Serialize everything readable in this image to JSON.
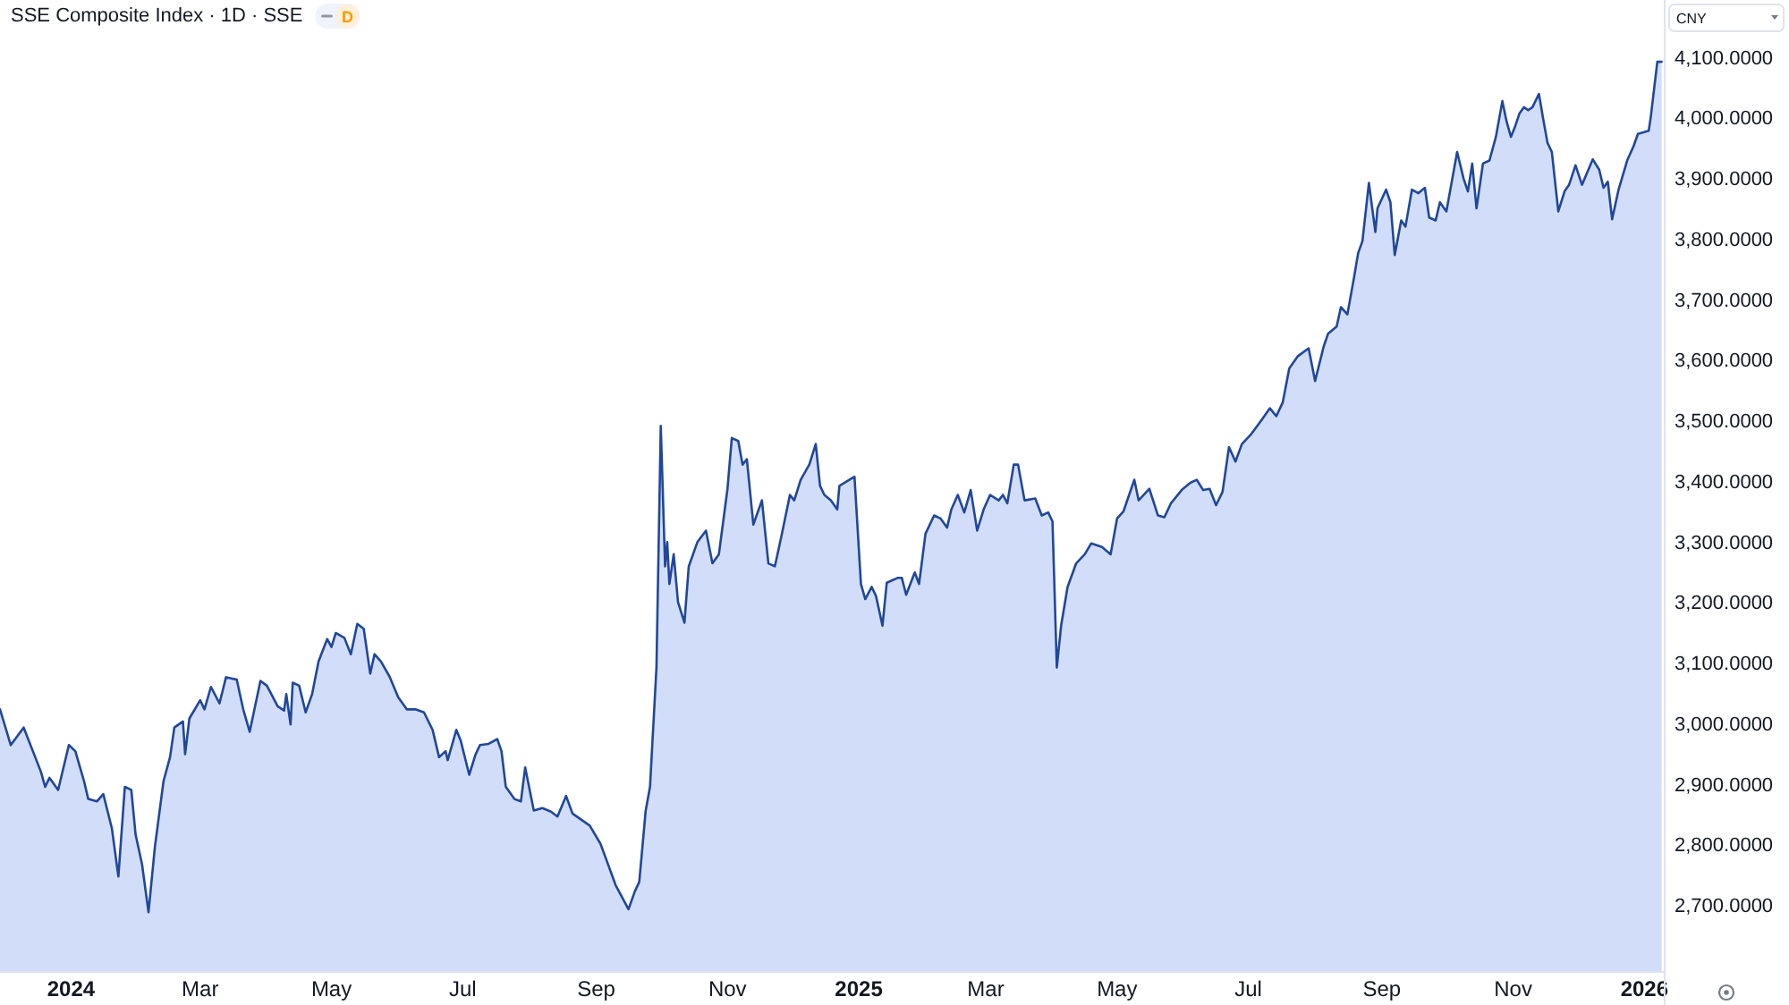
{
  "chart_data": {
    "type": "area",
    "title": "SSE Composite Index · 1D · SSE",
    "ylabel": "CNY",
    "annotations": [
      "D"
    ],
    "color": "#21479b",
    "xlim": [
      "2023-11-29",
      "2026-01-10"
    ],
    "ylim": [
      2594,
      4197
    ],
    "xticks": [
      {
        "value": "2024-01-01",
        "label": "2024"
      },
      {
        "value": "2024-03-01",
        "label": "Mar"
      },
      {
        "value": "2024-05-01",
        "label": "May"
      },
      {
        "value": "2024-07-01",
        "label": "Jul"
      },
      {
        "value": "2024-09-01",
        "label": "Sep"
      },
      {
        "value": "2024-11-01",
        "label": "Nov"
      },
      {
        "value": "2025-01-01",
        "label": "2025"
      },
      {
        "value": "2025-03-01",
        "label": "Mar"
      },
      {
        "value": "2025-05-01",
        "label": "May"
      },
      {
        "value": "2025-07-01",
        "label": "Jul"
      },
      {
        "value": "2025-09-01",
        "label": "Sep"
      },
      {
        "value": "2025-11-01",
        "label": "Nov"
      },
      {
        "value": "2026-01-01",
        "label": "2026"
      }
    ],
    "yticks": [
      {
        "value": 2700,
        "label": "2,700.0000"
      },
      {
        "value": 2800,
        "label": "2,800.0000"
      },
      {
        "value": 2900,
        "label": "2,900.0000"
      },
      {
        "value": 3000,
        "label": "3,000.0000"
      },
      {
        "value": 3100,
        "label": "3,100.0000"
      },
      {
        "value": 3200,
        "label": "3,200.0000"
      },
      {
        "value": 3300,
        "label": "3,300.0000"
      },
      {
        "value": 3400,
        "label": "3,400.0000"
      },
      {
        "value": 3500,
        "label": "3,500.0000"
      },
      {
        "value": 3600,
        "label": "3,600.0000"
      },
      {
        "value": 3700,
        "label": "3,700.0000"
      },
      {
        "value": 3800,
        "label": "3,800.0000"
      },
      {
        "value": 3900,
        "label": "3,900.0000"
      },
      {
        "value": 4000,
        "label": "4,000.0000"
      },
      {
        "value": 4100,
        "label": "4,100.0000"
      }
    ],
    "x": [
      "2023-11-29",
      "2023-12-04",
      "2023-12-10",
      "2023-12-18",
      "2023-12-20",
      "2023-12-22",
      "2023-12-26",
      "2023-12-31",
      "2024-01-03",
      "2024-01-07",
      "2024-01-09",
      "2024-01-13",
      "2024-01-16",
      "2024-01-20",
      "2024-01-23",
      "2024-01-26",
      "2024-01-29",
      "2024-01-31",
      "2024-02-03",
      "2024-02-06",
      "2024-02-09",
      "2024-02-13",
      "2024-02-16",
      "2024-02-18",
      "2024-02-22",
      "2024-02-23",
      "2024-02-25",
      "2024-03-01",
      "2024-03-03",
      "2024-03-06",
      "2024-03-10",
      "2024-03-13",
      "2024-03-18",
      "2024-03-21",
      "2024-03-24",
      "2024-03-29",
      "2024-04-01",
      "2024-04-06",
      "2024-04-09",
      "2024-04-10",
      "2024-04-12",
      "2024-04-13",
      "2024-04-16",
      "2024-04-19",
      "2024-04-22",
      "2024-04-25",
      "2024-04-29",
      "2024-05-01",
      "2024-05-03",
      "2024-05-07",
      "2024-05-10",
      "2024-05-13",
      "2024-05-16",
      "2024-05-19",
      "2024-05-21",
      "2024-05-24",
      "2024-05-28",
      "2024-06-01",
      "2024-06-05",
      "2024-06-09",
      "2024-06-13",
      "2024-06-17",
      "2024-06-20",
      "2024-06-23",
      "2024-06-24",
      "2024-06-28",
      "2024-06-30",
      "2024-07-04",
      "2024-07-07",
      "2024-07-09",
      "2024-07-13",
      "2024-07-17",
      "2024-07-19",
      "2024-07-21",
      "2024-07-25",
      "2024-07-28",
      "2024-07-30",
      "2024-08-03",
      "2024-08-07",
      "2024-08-11",
      "2024-08-14",
      "2024-08-18",
      "2024-08-21",
      "2024-08-25",
      "2024-08-29",
      "2024-09-03",
      "2024-09-06",
      "2024-09-10",
      "2024-09-13",
      "2024-09-16",
      "2024-09-19",
      "2024-09-21",
      "2024-09-24",
      "2024-09-26",
      "2024-09-29",
      "2024-10-01",
      "2024-10-03",
      "2024-10-04",
      "2024-10-05",
      "2024-10-07",
      "2024-10-09",
      "2024-10-12",
      "2024-10-14",
      "2024-10-18",
      "2024-10-22",
      "2024-10-25",
      "2024-10-28",
      "2024-11-01",
      "2024-11-03",
      "2024-11-06",
      "2024-11-08",
      "2024-11-10",
      "2024-11-13",
      "2024-11-17",
      "2024-11-20",
      "2024-11-23",
      "2024-11-26",
      "2024-11-30",
      "2024-12-02",
      "2024-12-05",
      "2024-12-09",
      "2024-12-12",
      "2024-12-14",
      "2024-12-16",
      "2024-12-19",
      "2024-12-22",
      "2024-12-23",
      "2024-12-30",
      "2025-01-02",
      "2025-01-04",
      "2025-01-07",
      "2025-01-09",
      "2025-01-12",
      "2025-01-14",
      "2025-01-19",
      "2025-01-21",
      "2025-01-23",
      "2025-01-27",
      "2025-01-29",
      "2025-02-01",
      "2025-02-05",
      "2025-02-08",
      "2025-02-11",
      "2025-02-13",
      "2025-02-16",
      "2025-02-19",
      "2025-02-22",
      "2025-02-25",
      "2025-02-28",
      "2025-03-03",
      "2025-03-07",
      "2025-03-09",
      "2025-03-11",
      "2025-03-14",
      "2025-03-16",
      "2025-03-19",
      "2025-03-24",
      "2025-03-27",
      "2025-03-30",
      "2025-04-01",
      "2025-04-03",
      "2025-04-05",
      "2025-04-08",
      "2025-04-12",
      "2025-04-16",
      "2025-04-19",
      "2025-04-24",
      "2025-04-28",
      "2025-05-01",
      "2025-05-04",
      "2025-05-09",
      "2025-05-11",
      "2025-05-16",
      "2025-05-20",
      "2025-05-23",
      "2025-05-26",
      "2025-05-31",
      "2025-06-04",
      "2025-06-07",
      "2025-06-10",
      "2025-06-13",
      "2025-06-16",
      "2025-06-19",
      "2025-06-22",
      "2025-06-25",
      "2025-06-28",
      "2025-07-02",
      "2025-07-07",
      "2025-07-11",
      "2025-07-14",
      "2025-07-17",
      "2025-07-20",
      "2025-07-24",
      "2025-07-29",
      "2025-08-01",
      "2025-08-05",
      "2025-08-07",
      "2025-08-11",
      "2025-08-13",
      "2025-08-16",
      "2025-08-19",
      "2025-08-21",
      "2025-08-23",
      "2025-08-26",
      "2025-08-29",
      "2025-08-30",
      "2025-09-03",
      "2025-09-05",
      "2025-09-07",
      "2025-09-10",
      "2025-09-12",
      "2025-09-15",
      "2025-09-18",
      "2025-09-21",
      "2025-09-23",
      "2025-09-26",
      "2025-09-28",
      "2025-10-01",
      "2025-10-06",
      "2025-10-09",
      "2025-10-11",
      "2025-10-13",
      "2025-10-15",
      "2025-10-18",
      "2025-10-21",
      "2025-10-24",
      "2025-10-27",
      "2025-10-29",
      "2025-10-31",
      "2025-11-02",
      "2025-11-04",
      "2025-11-06",
      "2025-11-08",
      "2025-11-10",
      "2025-11-13",
      "2025-11-15",
      "2025-11-17",
      "2025-11-19",
      "2025-11-22",
      "2025-11-25",
      "2025-11-27",
      "2025-11-30",
      "2025-12-03",
      "2025-12-08",
      "2025-12-11",
      "2025-12-13",
      "2025-12-15",
      "2025-12-17",
      "2025-12-20",
      "2025-12-24",
      "2025-12-27",
      "2025-12-29",
      "2026-01-03",
      "2026-01-04",
      "2026-01-07",
      "2026-01-09"
    ],
    "values": [
      3026,
      2967,
      2996,
      2923,
      2898,
      2913,
      2893,
      2967,
      2957,
      2908,
      2878,
      2874,
      2886,
      2829,
      2750,
      2898,
      2893,
      2819,
      2770,
      2691,
      2800,
      2908,
      2947,
      2996,
      3006,
      2952,
      3011,
      3041,
      3026,
      3063,
      3036,
      3079,
      3075,
      3026,
      2989,
      3073,
      3065,
      3031,
      3024,
      3051,
      3001,
      3070,
      3065,
      3021,
      3051,
      3105,
      3142,
      3129,
      3152,
      3144,
      3117,
      3167,
      3159,
      3085,
      3117,
      3105,
      3080,
      3046,
      3026,
      3026,
      3021,
      2992,
      2947,
      2957,
      2942,
      2992,
      2975,
      2918,
      2952,
      2967,
      2969,
      2977,
      2957,
      2898,
      2878,
      2874,
      2930,
      2859,
      2863,
      2857,
      2849,
      2883,
      2854,
      2844,
      2834,
      2804,
      2775,
      2736,
      2716,
      2696,
      2726,
      2741,
      2859,
      2898,
      3095,
      3494,
      3262,
      3302,
      3233,
      3282,
      3203,
      3169,
      3262,
      3302,
      3321,
      3267,
      3282,
      3390,
      3474,
      3469,
      3430,
      3439,
      3331,
      3371,
      3267,
      3262,
      3311,
      3380,
      3371,
      3405,
      3430,
      3464,
      3395,
      3380,
      3371,
      3356,
      3395,
      3410,
      3233,
      3208,
      3228,
      3213,
      3164,
      3235,
      3243,
      3243,
      3215,
      3252,
      3233,
      3316,
      3346,
      3341,
      3326,
      3356,
      3380,
      3351,
      3388,
      3321,
      3356,
      3380,
      3371,
      3380,
      3366,
      3430,
      3430,
      3371,
      3374,
      3346,
      3351,
      3336,
      3095,
      3164,
      3228,
      3267,
      3282,
      3300,
      3294,
      3282,
      3341,
      3353,
      3405,
      3371,
      3390,
      3346,
      3343,
      3366,
      3388,
      3400,
      3405,
      3388,
      3390,
      3363,
      3385,
      3459,
      3435,
      3464,
      3479,
      3503,
      3523,
      3510,
      3533,
      3589,
      3609,
      3622,
      3568,
      3625,
      3646,
      3658,
      3690,
      3678,
      3737,
      3779,
      3799,
      3895,
      3814,
      3853,
      3884,
      3863,
      3776,
      3833,
      3823,
      3884,
      3878,
      3887,
      3838,
      3833,
      3863,
      3848,
      3946,
      3902,
      3881,
      3927,
      3853,
      3927,
      3932,
      3971,
      4030,
      3996,
      3971,
      3989,
      4010,
      4020,
      4015,
      4020,
      4042,
      4000,
      3961,
      3946,
      3848,
      3882,
      3892,
      3924,
      3892,
      3934,
      3917,
      3887,
      3897,
      3835,
      3884,
      3932,
      3956,
      3976,
      3981,
      4005,
      4095,
      4095
    ]
  }
}
